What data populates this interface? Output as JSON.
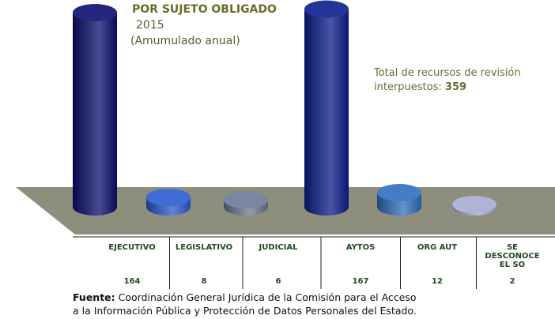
{
  "chart_data": {
    "type": "bar",
    "title": "POR SUJETO OBLIGADO",
    "subtitle": "2015",
    "subtitle2": "(Amumulado anual)",
    "annotation": "Total de recursos de revisión interpuestos:",
    "total": 359,
    "categories": [
      "EJECUTIVO",
      "LEGISLATIVO",
      "JUDICIAL",
      "AYTOS",
      "ORG AUT",
      "SE DESCONOCE EL SO"
    ],
    "values": [
      164,
      8,
      6,
      167,
      12,
      2
    ],
    "colors": [
      "#0a0f6e",
      "#2a5bd0",
      "#6c7a96",
      "#0b1e8c",
      "#2f6fc0",
      "#a6acd4"
    ],
    "source_label": "Fuente:",
    "source_lines": [
      "Coordinación General Jurídica de la Comisión para el Acceso",
      "a la Información Pública y Protección de Datos Personales del Estado."
    ]
  }
}
